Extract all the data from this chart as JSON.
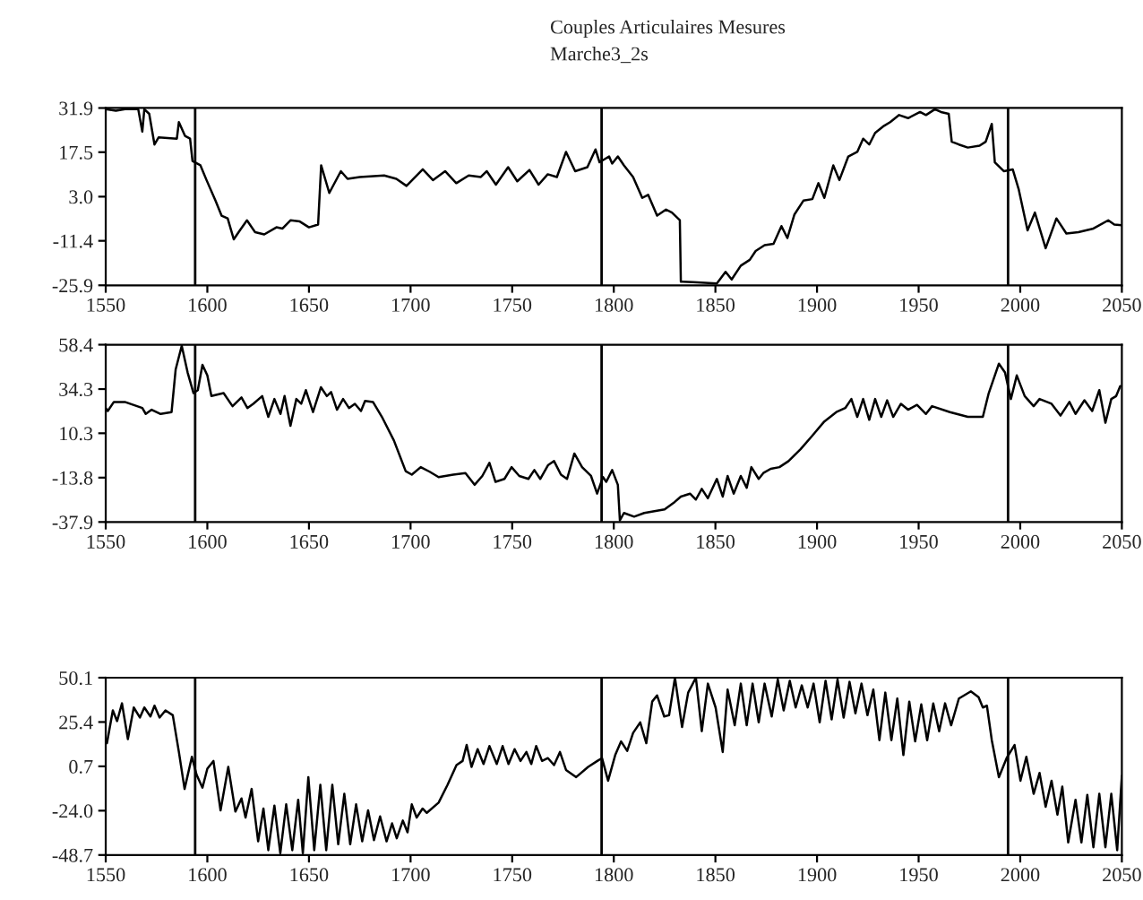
{
  "chart_data": [
    {
      "type": "line",
      "title": "Couples Articulaires Mesures",
      "subtitle": "Marche3_2s",
      "xlim": [
        1550,
        2050
      ],
      "ylim": [
        -25.9,
        31.9
      ],
      "xticks": [
        1550,
        1600,
        1650,
        1700,
        1750,
        1800,
        1850,
        1900,
        1950,
        2000,
        2050
      ],
      "yticks": [
        -25.9,
        -11.4,
        {
          "value": 3.0,
          "label": "3.0"
        },
        17.5,
        31.9
      ],
      "ref_lines": [
        {
          "axis": "x",
          "value": 1594,
          "color": "#000000"
        },
        {
          "axis": "x",
          "value": 1794,
          "color": "#000000"
        },
        {
          "axis": "x",
          "value": 1994,
          "color": "#000000"
        }
      ],
      "series": [
        {
          "color": "#000000",
          "x": [
            1550,
            1555,
            1559.5,
            1566,
            1568,
            1569,
            1571.4,
            1574,
            1576,
            1585,
            1586,
            1589,
            1591.5,
            1592.7,
            1596.6,
            1599.6,
            1604,
            1607,
            1610,
            1613,
            1616,
            1619.5,
            1623.5,
            1628,
            1634,
            1637,
            1641,
            1645.5,
            1650,
            1654.5,
            1656,
            1660,
            1665.7,
            1669,
            1675,
            1687,
            1693,
            1698,
            1706,
            1711,
            1717,
            1722.5,
            1728.6,
            1734.6,
            1737.5,
            1742,
            1748,
            1752.5,
            1758.5,
            1763,
            1767.5,
            1772,
            1776.5,
            1781,
            1787,
            1791,
            1793,
            1797.7,
            1799.2,
            1802,
            1805,
            1809.5,
            1814,
            1816.9,
            1821.3,
            1825.7,
            1828.6,
            1832.5,
            1833,
            1839,
            1850.7,
            1855,
            1858,
            1862.5,
            1866.9,
            1869.8,
            1874.2,
            1878.6,
            1882.5,
            1885.4,
            1888.9,
            1893.3,
            1897.7,
            1900.7,
            1903.6,
            1908,
            1911,
            1915.4,
            1919.8,
            1922.7,
            1925.7,
            1928.6,
            1933,
            1936,
            1940.4,
            1944.8,
            1950.7,
            1953.6,
            1958,
            1961,
            1964.8,
            1966.3,
            1969.8,
            1974.2,
            1980,
            1983,
            1986,
            1987.5,
            1991.9,
            1996.3,
            1999.2,
            2003.6,
            2007.2,
            2012.5,
            2017.8,
            2022.7,
            2028.6,
            2036,
            2043.3,
            2046.3,
            2050
          ],
          "values": [
            31.5,
            31,
            31.5,
            31.5,
            24.2,
            31.5,
            30,
            20,
            22.3,
            21.9,
            27.3,
            22.8,
            21.9,
            14.6,
            13.2,
            8.4,
            1.7,
            -3.2,
            -4.1,
            -10.9,
            -8,
            -4.7,
            -8.6,
            -9.3,
            -7,
            -7.4,
            -4.7,
            -5.1,
            -7,
            -6.1,
            13.2,
            4.2,
            11.3,
            8.8,
            9.4,
            9.9,
            8.8,
            6.5,
            11.9,
            8.4,
            11.3,
            7.4,
            9.9,
            9.4,
            11.3,
            6.9,
            12.6,
            8,
            11.7,
            6.9,
            10.3,
            9.4,
            17.6,
            11.3,
            12.6,
            18.4,
            14.2,
            16.1,
            13.8,
            16.1,
            13.2,
            9.4,
            2.6,
            3.6,
            -3.2,
            -1.2,
            -2.2,
            -4.7,
            -24.7,
            -24.9,
            -25.3,
            -21.5,
            -24,
            -19.5,
            -17.6,
            -14.7,
            -12.8,
            -12.4,
            -6.6,
            -10.5,
            -2.8,
            1.7,
            2.2,
            7.4,
            2.6,
            13.2,
            8.4,
            16.1,
            17.6,
            21.9,
            20,
            23.8,
            26.1,
            27.3,
            29.6,
            28.6,
            30.6,
            29.6,
            31.5,
            30.6,
            30,
            20.9,
            20,
            19,
            19.6,
            20.9,
            26.7,
            14.2,
            11.3,
            11.9,
            5.5,
            -8,
            -2.2,
            -13.8,
            -4.1,
            -9,
            -8.6,
            -7.4,
            -4.7,
            -6.1,
            -6.3
          ]
        }
      ]
    },
    {
      "type": "line",
      "xlim": [
        1550,
        2050
      ],
      "ylim": [
        -37.9,
        58.4
      ],
      "xticks": [
        1550,
        1600,
        1650,
        1700,
        1750,
        1800,
        1850,
        1900,
        1950,
        2000,
        2050
      ],
      "yticks": [
        -37.9,
        -13.8,
        10.3,
        34.3,
        58.4
      ],
      "ref_lines": [
        {
          "axis": "x",
          "value": 1594,
          "color": "#000000"
        },
        {
          "axis": "x",
          "value": 1794,
          "color": "#000000"
        },
        {
          "axis": "x",
          "value": 1994,
          "color": "#000000"
        }
      ],
      "series": [
        {
          "color": "#000000",
          "x": [
            1550,
            1551,
            1554,
            1559.4,
            1568,
            1569.7,
            1572.6,
            1577,
            1582.4,
            1584.4,
            1587.4,
            1590.3,
            1593.2,
            1595.3,
            1597.6,
            1600,
            1602,
            1608,
            1612.4,
            1616.8,
            1619.7,
            1622.6,
            1627,
            1630,
            1633,
            1636,
            1638,
            1640.9,
            1643.8,
            1646.2,
            1648.5,
            1652,
            1655.9,
            1658.8,
            1660.9,
            1663.8,
            1666.8,
            1669.7,
            1672.6,
            1675.6,
            1677.6,
            1681.5,
            1685.9,
            1691.8,
            1697.6,
            1700.6,
            1705,
            1709.4,
            1713.8,
            1721,
            1727,
            1731.5,
            1735.3,
            1738.8,
            1741.8,
            1746.2,
            1749.7,
            1753.5,
            1758,
            1760.9,
            1763.8,
            1767.6,
            1770.6,
            1774,
            1777,
            1780.6,
            1784.4,
            1788.8,
            1791.8,
            1794.7,
            1796.3,
            1799.2,
            1802,
            1803,
            1805,
            1810,
            1815,
            1820,
            1825,
            1830,
            1833,
            1837.5,
            1840.4,
            1843.3,
            1846.3,
            1850.7,
            1853.6,
            1856,
            1859,
            1862.5,
            1865.4,
            1867.7,
            1871.3,
            1873.6,
            1877.2,
            1881.5,
            1886,
            1891.9,
            1897.7,
            1903.6,
            1909.5,
            1913.9,
            1916.9,
            1919.8,
            1922.7,
            1925.7,
            1928.6,
            1931.6,
            1934.5,
            1937.5,
            1941.3,
            1944.8,
            1949.2,
            1953.6,
            1956.6,
            1965.4,
            1974.2,
            1981.6,
            1984.5,
            1989.5,
            1992.5,
            1995.4,
            1998.3,
            2002.2,
            2006.6,
            2009.5,
            2015.4,
            2019.8,
            2024.2,
            2027.2,
            2031.6,
            2035.4,
            2038.9,
            2041.9,
            2044.8,
            2047.2,
            2049.2
          ],
          "values": [
            24.0,
            22.4,
            27.3,
            27.3,
            24,
            20.8,
            23.1,
            20.8,
            21.8,
            44.9,
            57.8,
            43.3,
            32.1,
            33.7,
            47.5,
            41.7,
            30.5,
            32.1,
            25,
            29.8,
            24,
            26.3,
            30.5,
            19.2,
            28.9,
            20.8,
            30.5,
            14.4,
            28.9,
            26.3,
            33.7,
            21.8,
            35.3,
            30.5,
            32.7,
            23.1,
            28.9,
            24,
            26.3,
            22.4,
            27.9,
            27.3,
            19.2,
            6.4,
            -10.3,
            -12.2,
            -8.1,
            -10.6,
            -13.5,
            -12.2,
            -11.3,
            -17.7,
            -12.9,
            -5.8,
            -16.1,
            -14.5,
            -8.1,
            -12.9,
            -14.5,
            -9.7,
            -14.5,
            -7.1,
            -4.8,
            -12.2,
            -14.5,
            -0.7,
            -8.1,
            -12.9,
            -22.5,
            -13.5,
            -16.1,
            -9.7,
            -17.7,
            -37,
            -33,
            -35,
            -33,
            -32,
            -31,
            -27,
            -24.1,
            -22.5,
            -25.7,
            -19.9,
            -25,
            -14.5,
            -24.1,
            -12.9,
            -22.5,
            -12.9,
            -19.3,
            -8.1,
            -14.5,
            -11.3,
            -9,
            -8.1,
            -4.8,
            1.6,
            9,
            16.7,
            21.8,
            24,
            28.9,
            19.2,
            28.9,
            17.6,
            28.9,
            19.2,
            28.2,
            19.2,
            26.3,
            23.1,
            25.7,
            20.8,
            25,
            21.8,
            19.2,
            19.2,
            32.1,
            48.1,
            43.3,
            28.9,
            41.7,
            30.5,
            25,
            28.9,
            26.3,
            19.9,
            27.3,
            20.8,
            28.2,
            22.4,
            33.7,
            16,
            28.9,
            30.5,
            35.9
          ]
        }
      ]
    },
    {
      "type": "line",
      "xlim": [
        1550,
        2050
      ],
      "ylim": [
        -48.7,
        50.1
      ],
      "xticks": [
        1550,
        1600,
        1650,
        1700,
        1750,
        1800,
        1850,
        1900,
        1950,
        2000,
        2050
      ],
      "yticks": [
        -48.7,
        {
          "value": -24.0,
          "label": "-24.0"
        },
        0.7,
        25.4,
        50.1
      ],
      "ref_lines": [
        {
          "axis": "x",
          "value": 1594,
          "color": "#000000"
        },
        {
          "axis": "x",
          "value": 1794,
          "color": "#000000"
        },
        {
          "axis": "x",
          "value": 1994,
          "color": "#000000"
        }
      ],
      "series": [
        {
          "color": "#000000",
          "x": [
            1550.6,
            1553.5,
            1555.6,
            1558,
            1560.9,
            1563.8,
            1566.8,
            1569,
            1572,
            1574,
            1576.5,
            1579.4,
            1583,
            1586,
            1588.8,
            1592.4,
            1594.7,
            1597.6,
            1600,
            1603,
            1606.5,
            1610.3,
            1613.8,
            1616.8,
            1618.8,
            1621.8,
            1625,
            1627.6,
            1630,
            1633,
            1635.9,
            1638.8,
            1641.8,
            1644.7,
            1647,
            1649.7,
            1652.6,
            1655.6,
            1658.5,
            1661.5,
            1664.4,
            1667.4,
            1670.3,
            1673.2,
            1676.2,
            1679.1,
            1682,
            1685,
            1688.2,
            1690.9,
            1693.2,
            1696.2,
            1698.5,
            1700.6,
            1703,
            1705.9,
            1708,
            1713.8,
            1718.2,
            1722.6,
            1725.6,
            1727.6,
            1730,
            1733,
            1735.9,
            1738.8,
            1742.4,
            1745.3,
            1748.2,
            1751.2,
            1754.1,
            1757,
            1759.4,
            1761.8,
            1764.7,
            1767.6,
            1770.6,
            1773.5,
            1776.5,
            1781.5,
            1787.4,
            1791.9,
            1794.2,
            1797.2,
            1800.7,
            1803.6,
            1806.6,
            1809.5,
            1813,
            1816,
            1818.9,
            1821.3,
            1824.8,
            1827.2,
            1830.1,
            1833.6,
            1836.6,
            1840.4,
            1843.3,
            1846.3,
            1850.1,
            1853.6,
            1856,
            1859.5,
            1862.5,
            1865.4,
            1868.3,
            1871.3,
            1874.2,
            1877.7,
            1880.7,
            1883.6,
            1886.6,
            1889.5,
            1892.5,
            1895.4,
            1898.3,
            1901.3,
            1904.2,
            1907.2,
            1910.1,
            1913.1,
            1916,
            1918.9,
            1921.9,
            1924.8,
            1927.7,
            1930.7,
            1933.6,
            1936.6,
            1939.5,
            1942.5,
            1945.4,
            1948.3,
            1951.3,
            1954.2,
            1957.2,
            1960.1,
            1963,
            1966,
            1969.8,
            1975.7,
            1979.5,
            1981.6,
            1983.6,
            1986,
            1989.5,
            1993.3,
            1997.2,
            2000.1,
            2003,
            2006.6,
            2009.5,
            2012.5,
            2015.4,
            2018.3,
            2020.7,
            2023.6,
            2027.2,
            2030.1,
            2033,
            2036,
            2038.9,
            2041.9,
            2044.8,
            2047.7,
            2050
          ],
          "values": [
            13.6,
            31.9,
            25.9,
            35.8,
            15.9,
            33.5,
            27.9,
            33.5,
            28.5,
            34.5,
            27.9,
            31.9,
            29.2,
            8.7,
            -11.9,
            6,
            -4,
            -11.2,
            -0.6,
            3.7,
            -23.8,
            0.4,
            -24.5,
            -17.2,
            -27.8,
            -11.9,
            -41.1,
            -22.8,
            -46,
            -21.2,
            -47.7,
            -20.5,
            -46,
            -17.9,
            -47.7,
            -5.3,
            -46,
            -9.6,
            -46,
            -9.6,
            -42.7,
            -14.6,
            -42.7,
            -20.5,
            -41.1,
            -23.8,
            -40.4,
            -27.2,
            -41.1,
            -31.1,
            -39.4,
            -29.5,
            -36.1,
            -20.5,
            -27.8,
            -22.8,
            -25.2,
            -19.5,
            -9.6,
            1.4,
            3.7,
            12.6,
            0.4,
            10.3,
            2,
            12,
            2,
            12,
            2,
            10.3,
            3.7,
            8.7,
            2,
            12,
            3.7,
            5.3,
            1.4,
            8.7,
            -1.3,
            -5.3,
            0.4,
            3.7,
            5.3,
            -7.3,
            7,
            14.6,
            9.3,
            19.3,
            25.2,
            13.6,
            36.8,
            40.2,
            28.5,
            29.2,
            50.1,
            22.6,
            41.8,
            50.1,
            20.3,
            46.8,
            33.5,
            8.7,
            43.5,
            23.6,
            46.8,
            23.6,
            46.8,
            25.2,
            46.8,
            28.5,
            49.1,
            31.9,
            48.4,
            33.5,
            45.8,
            33.5,
            46.8,
            25.2,
            48.4,
            26.9,
            49.1,
            27.9,
            47.8,
            30.2,
            46.8,
            29.2,
            43.5,
            15.3,
            41.8,
            15.3,
            38.5,
            7,
            36.8,
            14.6,
            35.2,
            15.3,
            35.8,
            20.3,
            35.8,
            23.6,
            38.5,
            42.5,
            39.2,
            33.5,
            34.5,
            15.3,
            -5.3,
            5.3,
            12.6,
            -7.3,
            6,
            -14.6,
            -3,
            -21.8,
            -7.3,
            -26.2,
            -10.6,
            -41.7,
            -17.9,
            -41.7,
            -15.2,
            -44.4,
            -14.6,
            -44.4,
            -14.6,
            -46,
            -4.6
          ]
        }
      ]
    }
  ]
}
